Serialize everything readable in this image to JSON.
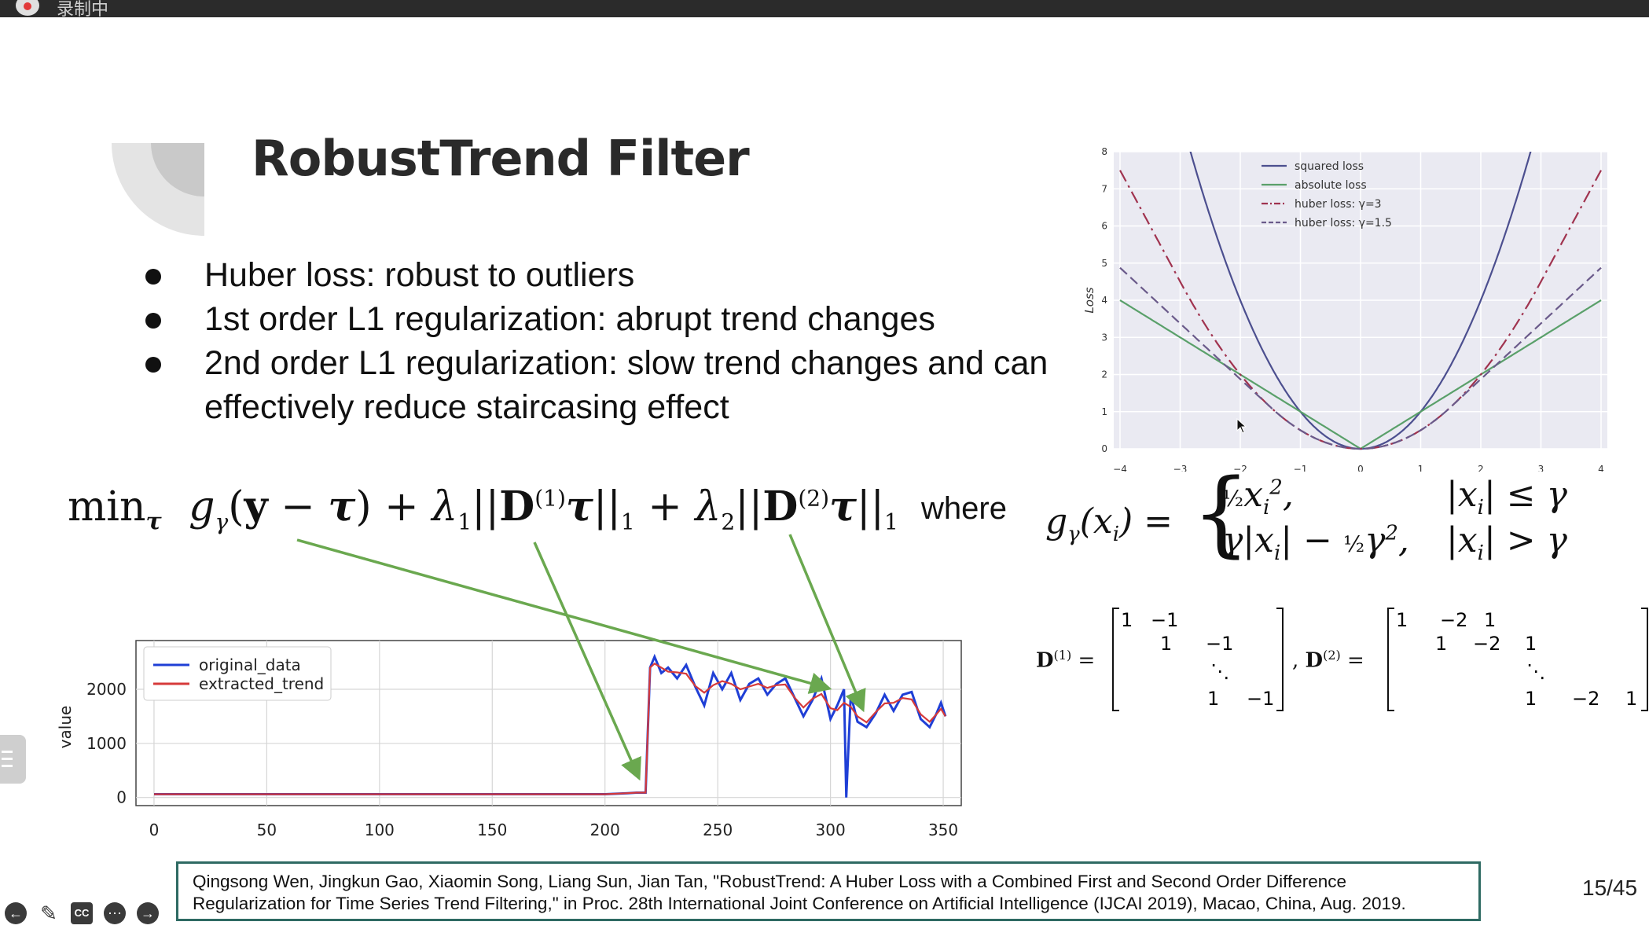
{
  "recorder": {
    "status_text": "录制中"
  },
  "slide": {
    "title": "RobustTrend Filter",
    "bullets": [
      "Huber loss: robust to outliers",
      "1st order L1 regularization: abrupt trend changes",
      "2nd order L1 regularization: slow trend changes and can effectively reduce staircasing effect"
    ],
    "where_label": "where",
    "citation": "Qingsong Wen, Jingkun Gao, Xiaomin Song, Liang Sun, Jian Tan, \"RobustTrend: A Huber Loss with a Combined First and Second Order Difference Regularization for Time Series Trend Filtering,\" in Proc. 28th International Joint Conference on Artificial Intelligence (IJCAI 2019), Macao, China, Aug. 2019.",
    "page_indicator": "15/45"
  },
  "colors": {
    "arrow": "#6aa84f",
    "citation_border": "#2e6a63",
    "original": "#1f3fd6",
    "trend": "#d63a3a"
  },
  "controls": [
    "prev-icon",
    "pen-icon",
    "cc-icon",
    "more-icon",
    "next-icon"
  ],
  "chart_data": [
    {
      "type": "line",
      "title": "",
      "xlabel": "",
      "ylabel": "Loss",
      "xlim": [
        -4,
        4
      ],
      "ylim": [
        0,
        8
      ],
      "xticks": [
        -4,
        -3,
        -2,
        -1,
        0,
        1,
        2,
        3,
        4
      ],
      "yticks": [
        0,
        1,
        2,
        3,
        4,
        5,
        6,
        7,
        8
      ],
      "legend_position": "top-center",
      "series": [
        {
          "name": "squared loss",
          "style": "solid",
          "color": "#4c4f8f",
          "formula": "x^2"
        },
        {
          "name": "absolute loss",
          "style": "solid",
          "color": "#5aa06a",
          "formula": "|x|"
        },
        {
          "name": "huber loss: γ=3",
          "style": "dashdot",
          "color": "#a0334f",
          "gamma": 3
        },
        {
          "name": "huber loss: γ=1.5",
          "style": "dashed",
          "color": "#6a5a8a",
          "gamma": 1.5
        }
      ]
    },
    {
      "type": "line",
      "title": "",
      "xlabel": "",
      "ylabel": "value",
      "xlim": [
        -8,
        358
      ],
      "ylim": [
        -150,
        2900
      ],
      "xticks": [
        0,
        50,
        100,
        150,
        200,
        250,
        300,
        350
      ],
      "yticks": [
        0,
        1000,
        2000
      ],
      "legend_position": "top-left",
      "series": [
        {
          "name": "original_data",
          "color": "#1f3fd6"
        },
        {
          "name": "extracted_trend",
          "color": "#d63a3a"
        }
      ],
      "points": [
        [
          0,
          60
        ],
        [
          50,
          60
        ],
        [
          100,
          60
        ],
        [
          150,
          60
        ],
        [
          200,
          60
        ],
        [
          210,
          80
        ],
        [
          214,
          90
        ],
        [
          218,
          90
        ],
        [
          220,
          2400
        ],
        [
          222,
          2600
        ],
        [
          225,
          2300
        ],
        [
          228,
          2400
        ],
        [
          232,
          2200
        ],
        [
          236,
          2450
        ],
        [
          240,
          2050
        ],
        [
          244,
          1700
        ],
        [
          248,
          2300
        ],
        [
          252,
          2000
        ],
        [
          256,
          2300
        ],
        [
          260,
          1800
        ],
        [
          264,
          2100
        ],
        [
          268,
          2200
        ],
        [
          272,
          1900
        ],
        [
          276,
          2100
        ],
        [
          280,
          2200
        ],
        [
          284,
          1850
        ],
        [
          288,
          1500
        ],
        [
          292,
          1800
        ],
        [
          296,
          2200
        ],
        [
          300,
          1450
        ],
        [
          303,
          1700
        ],
        [
          306,
          2000
        ],
        [
          307,
          0
        ],
        [
          309,
          1900
        ],
        [
          312,
          1400
        ],
        [
          316,
          1300
        ],
        [
          320,
          1550
        ],
        [
          324,
          1900
        ],
        [
          328,
          1600
        ],
        [
          332,
          1900
        ],
        [
          336,
          1950
        ],
        [
          340,
          1450
        ],
        [
          344,
          1300
        ],
        [
          347,
          1550
        ],
        [
          349,
          1750
        ],
        [
          351,
          1500
        ]
      ],
      "outliers": [
        [
          301,
          2000
        ],
        [
          303,
          1150
        ],
        [
          307,
          0
        ]
      ]
    }
  ],
  "equations": {
    "objective": "min_τ g_γ(y − τ) + λ1||D(1)τ||1 + λ2||D(2)τ||1",
    "huber": "g_γ(x_i) = { ½x_i², |x_i| ≤ γ ; γ|x_i| − ½γ², |x_i| > γ }",
    "d1": "D(1) = [1 −1 ; 1 −1 ; ⋱ ; 1 −1]",
    "d2": "D(2) = [1 −2 1 ; 1 −2 1 ; ⋱ ; 1 −2 1]"
  }
}
